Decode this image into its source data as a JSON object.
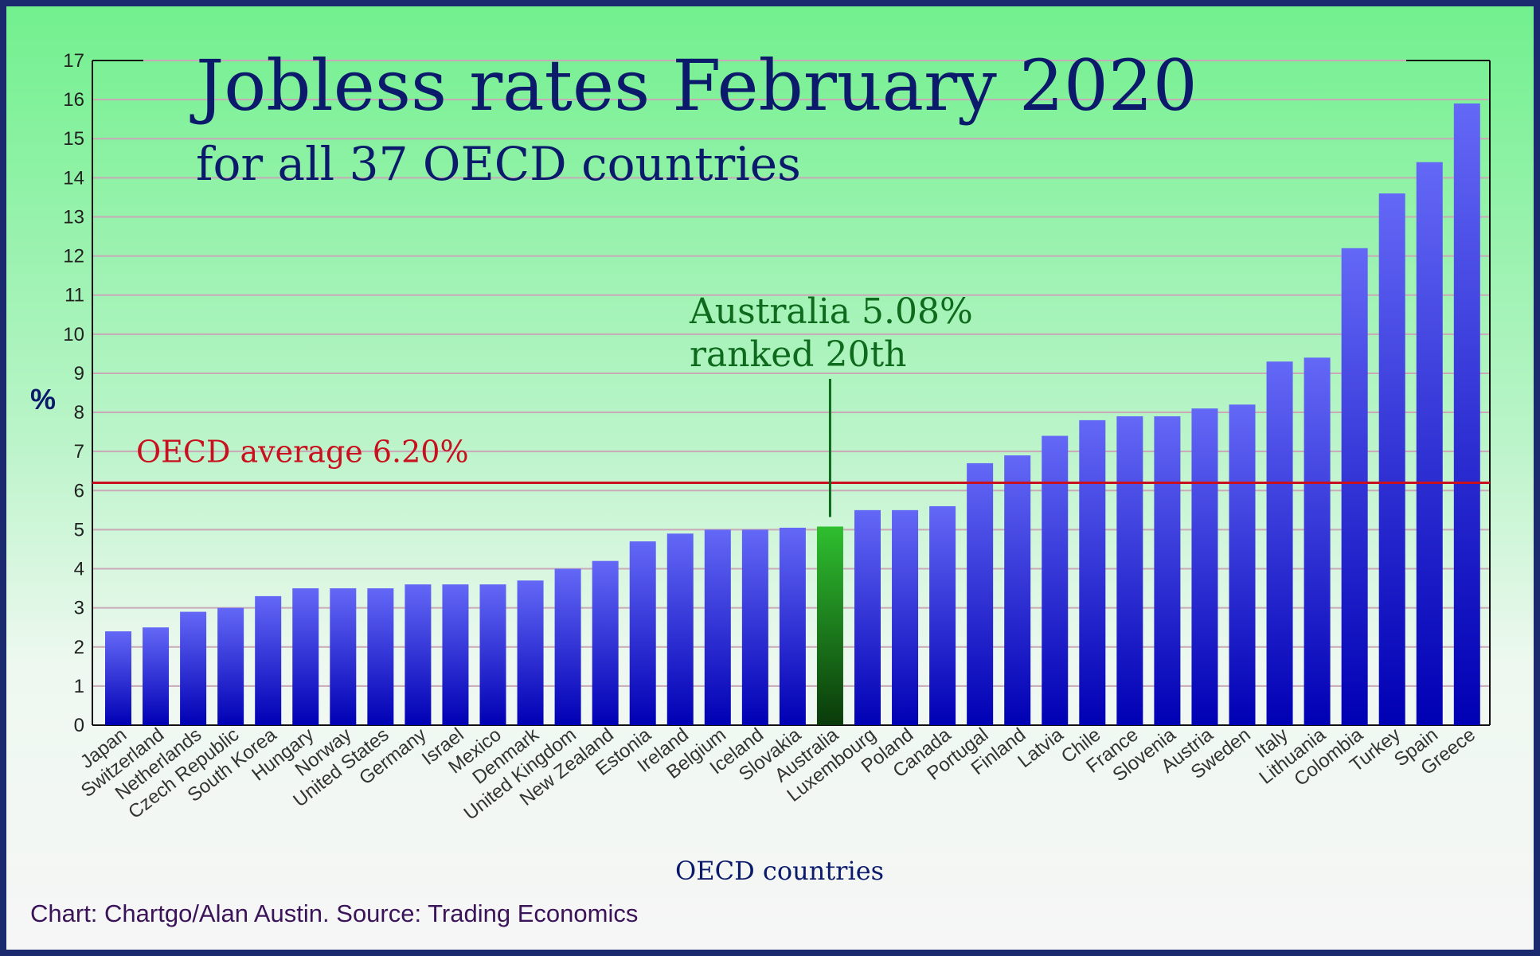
{
  "chart_data": {
    "type": "bar",
    "title": "Jobless rates February 2020",
    "subtitle": "for all 37 OECD countries",
    "xlabel": "OECD countries",
    "ylabel": "%",
    "ylim": [
      0,
      17
    ],
    "yticks": [
      "0",
      "1",
      "2",
      "3",
      "4",
      "5",
      "6",
      "7",
      "8",
      "9",
      "10",
      "11",
      "12",
      "13",
      "14",
      "15",
      "16",
      "17"
    ],
    "grid": true,
    "categories": [
      "Japan",
      "Switzerland",
      "Netherlands",
      "Czech Republic",
      "South Korea",
      "Hungary",
      "Norway",
      "United States",
      "Germany",
      "Israel",
      "Mexico",
      "Denmark",
      "United Kingdom",
      "New Zealand",
      "Estonia",
      "Ireland",
      "Belgium",
      "Iceland",
      "Slovakia",
      "Australia",
      "Luxembourg",
      "Poland",
      "Canada",
      "Portugal",
      "Finland",
      "Latvia",
      "Chile",
      "France",
      "Slovenia",
      "Austria",
      "Sweden",
      "Italy",
      "Lithuania",
      "Colombia",
      "Turkey",
      "Spain",
      "Greece"
    ],
    "values": [
      2.4,
      2.5,
      2.9,
      3.0,
      3.3,
      3.5,
      3.5,
      3.5,
      3.6,
      3.6,
      3.6,
      3.7,
      4.0,
      4.2,
      4.7,
      4.9,
      5.0,
      5.0,
      5.05,
      5.08,
      5.5,
      5.5,
      5.6,
      6.7,
      6.9,
      7.4,
      7.8,
      7.9,
      7.9,
      8.1,
      8.2,
      9.3,
      9.4,
      12.2,
      13.6,
      14.4,
      15.9
    ],
    "highlight": "Australia",
    "average": {
      "value": 6.2,
      "label": "OECD average 6.20%"
    },
    "annotation": {
      "line1": "Australia 5.08%",
      "line2": "ranked 20th"
    },
    "source": "Chart: Chartgo/Alan Austin. Source: Trading Economics",
    "colors": {
      "bar_top": "#6468f6",
      "bar_bottom": "#0000b4",
      "highlight_top": "#2fbf2f",
      "highlight_bottom": "#0a3a0a",
      "average_line": "#c8101e",
      "annotation": "#0e6a1c",
      "title": "#0b1a6b"
    }
  }
}
